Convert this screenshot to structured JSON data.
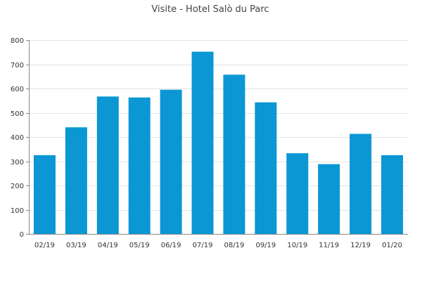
{
  "chart_data": {
    "type": "bar",
    "title": "Visite - Hotel Salò du Parc",
    "xlabel": "",
    "ylabel": "",
    "categories": [
      "02/19",
      "03/19",
      "04/19",
      "05/19",
      "06/19",
      "07/19",
      "08/19",
      "09/19",
      "10/19",
      "11/19",
      "12/19",
      "01/20"
    ],
    "values": [
      325,
      440,
      567,
      563,
      595,
      752,
      657,
      543,
      333,
      288,
      413,
      325
    ],
    "ylim": [
      0,
      800
    ],
    "yticks": [
      0,
      100,
      200,
      300,
      400,
      500,
      600,
      700,
      800
    ],
    "grid": true,
    "legend": "none",
    "bar_color": "#0a97d4"
  }
}
